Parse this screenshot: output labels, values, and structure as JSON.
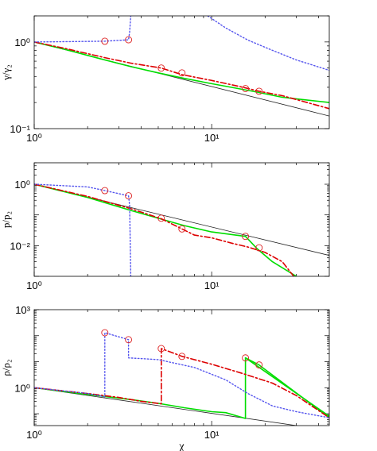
{
  "chart_data": [
    {
      "type": "line",
      "title": "",
      "xlabel": "",
      "ylabel": "γ/γ₂",
      "xscale": "log",
      "yscale": "log",
      "xlim": [
        1,
        46
      ],
      "ylim": [
        0.1,
        2
      ],
      "xticks": [
        {
          "value": 1,
          "label": "10⁰"
        },
        {
          "value": 10,
          "label": "10¹"
        }
      ],
      "yticks": [
        {
          "value": 0.1,
          "label": "10⁻¹"
        },
        {
          "value": 1,
          "label": "10⁰"
        }
      ],
      "series": [
        {
          "color": "#222222",
          "dash": "solid",
          "width": 0.8,
          "x": [
            1,
            46
          ],
          "y": [
            1,
            0.14
          ]
        },
        {
          "color": "#00dd00",
          "dash": "solid",
          "width": 1.6,
          "x": [
            1,
            1.5,
            2.5,
            3.5,
            5,
            7,
            10,
            17,
            25,
            46
          ],
          "y": [
            1,
            0.82,
            0.62,
            0.52,
            0.44,
            0.38,
            0.33,
            0.27,
            0.23,
            0.2
          ]
        },
        {
          "color": "#dd0000",
          "dash": "dashdot",
          "width": 1.6,
          "x": [
            1,
            1.5,
            2.5,
            3.5,
            5.2,
            6.8,
            10,
            15,
            18.5,
            25,
            46
          ],
          "y": [
            1,
            0.84,
            0.66,
            0.57,
            0.5,
            0.42,
            0.36,
            0.3,
            0.27,
            0.24,
            0.17
          ]
        },
        {
          "color": "#5555ee",
          "dash": "dotted",
          "width": 1.4,
          "x": [
            1,
            2.5,
            3.4,
            3.4,
            3.45,
            3.45,
            3.5
          ],
          "y": [
            1,
            1.02,
            1.06,
            1.06,
            1.3,
            1.3,
            2
          ]
        },
        {
          "color": "#5555ee",
          "dash": "dotted",
          "width": 1.4,
          "x": [
            9.5,
            12,
            16,
            22,
            30,
            46
          ],
          "y": [
            2,
            1.45,
            1.05,
            0.8,
            0.62,
            0.47
          ]
        }
      ],
      "markers": [
        {
          "x": 2.5,
          "y": 1.02
        },
        {
          "x": 3.4,
          "y": 1.06
        },
        {
          "x": 5.2,
          "y": 0.5
        },
        {
          "x": 6.8,
          "y": 0.44
        },
        {
          "x": 15.5,
          "y": 0.29
        },
        {
          "x": 18.5,
          "y": 0.27
        }
      ]
    },
    {
      "type": "line",
      "title": "",
      "xlabel": "",
      "ylabel": "p/p₂",
      "xscale": "log",
      "yscale": "log",
      "xlim": [
        1,
        46
      ],
      "ylim": [
        0.001,
        5
      ],
      "xticks": [
        {
          "value": 1,
          "label": "10⁰"
        },
        {
          "value": 10,
          "label": "10¹"
        }
      ],
      "yticks": [
        {
          "value": 0.01,
          "label": "10⁻²"
        },
        {
          "value": 1,
          "label": "10⁰"
        }
      ],
      "series": [
        {
          "color": "#222222",
          "dash": "solid",
          "width": 0.8,
          "x": [
            1,
            46
          ],
          "y": [
            1,
            0.0048
          ]
        },
        {
          "color": "#00dd00",
          "dash": "solid",
          "width": 1.6,
          "x": [
            1,
            2,
            3.5,
            5,
            7,
            10,
            15.5,
            18,
            22,
            30
          ],
          "y": [
            1,
            0.37,
            0.14,
            0.078,
            0.045,
            0.028,
            0.02,
            0.008,
            0.003,
            0.001
          ]
        },
        {
          "color": "#dd0000",
          "dash": "dashdot",
          "width": 1.6,
          "x": [
            1,
            2,
            3.5,
            5.2,
            6.8,
            8,
            10,
            13,
            16,
            20,
            25,
            29
          ],
          "y": [
            1,
            0.4,
            0.16,
            0.075,
            0.035,
            0.022,
            0.018,
            0.012,
            0.009,
            0.006,
            0.003,
            0.001
          ]
        },
        {
          "color": "#5555ee",
          "dash": "dotted",
          "width": 1.4,
          "x": [
            1,
            2,
            2.5,
            3.4,
            3.45,
            3.5
          ],
          "y": [
            1,
            0.82,
            0.62,
            0.42,
            0.2,
            0.001
          ]
        }
      ],
      "markers": [
        {
          "x": 2.5,
          "y": 0.62
        },
        {
          "x": 3.4,
          "y": 0.42
        },
        {
          "x": 5.2,
          "y": 0.078
        },
        {
          "x": 6.8,
          "y": 0.035
        },
        {
          "x": 15.5,
          "y": 0.02
        },
        {
          "x": 18.5,
          "y": 0.0085
        }
      ]
    },
    {
      "type": "line",
      "title": "",
      "xlabel": "χ",
      "ylabel": "ρ/ρ₂",
      "xscale": "log",
      "yscale": "log",
      "xlim": [
        1,
        46
      ],
      "ylim": [
        0.035,
        1000
      ],
      "xticks": [
        {
          "value": 1,
          "label": "10⁰"
        },
        {
          "value": 10,
          "label": "10¹"
        }
      ],
      "yticks": [
        {
          "value": 1,
          "label": "10⁰"
        },
        {
          "value": 1000,
          "label": "10³"
        }
      ],
      "series": [
        {
          "color": "#222222",
          "dash": "solid",
          "width": 0.8,
          "x": [
            1,
            46
          ],
          "y": [
            1,
            0.023
          ]
        },
        {
          "color": "#00dd00",
          "dash": "solid",
          "width": 1.6,
          "x": [
            1,
            2,
            3.5,
            5,
            7,
            10,
            12,
            15.5,
            15.5,
            18.5,
            46
          ],
          "y": [
            1,
            0.55,
            0.35,
            0.25,
            0.17,
            0.12,
            0.11,
            0.066,
            14,
            7.5,
            0.07
          ]
        },
        {
          "color": "#00dd00",
          "dash": "solid",
          "width": 1.6,
          "x": [
            15.5,
            46
          ],
          "y": [
            14,
            0.08
          ]
        },
        {
          "color": "#dd0000",
          "dash": "dashdot",
          "width": 1.6,
          "x": [
            1,
            2,
            3,
            4,
            5.2,
            5.2,
            6.8,
            10,
            15,
            22,
            30,
            46
          ],
          "y": [
            1,
            0.6,
            0.42,
            0.3,
            0.24,
            32,
            16,
            8,
            3.5,
            1.5,
            0.5,
            0.07
          ]
        },
        {
          "color": "#5555ee",
          "dash": "dotted",
          "width": 1.4,
          "x": [
            1,
            2,
            2.5,
            2.5,
            3.4,
            3.4,
            5,
            8,
            12,
            16,
            22,
            30,
            46
          ],
          "y": [
            1,
            0.6,
            0.45,
            130,
            70,
            14,
            12,
            6,
            2,
            0.6,
            0.2,
            0.12,
            0.07
          ]
        }
      ],
      "markers": [
        {
          "x": 2.5,
          "y": 130
        },
        {
          "x": 3.4,
          "y": 70
        },
        {
          "x": 5.2,
          "y": 32
        },
        {
          "x": 6.8,
          "y": 16
        },
        {
          "x": 15.5,
          "y": 14
        },
        {
          "x": 18.5,
          "y": 7.5
        }
      ]
    }
  ]
}
